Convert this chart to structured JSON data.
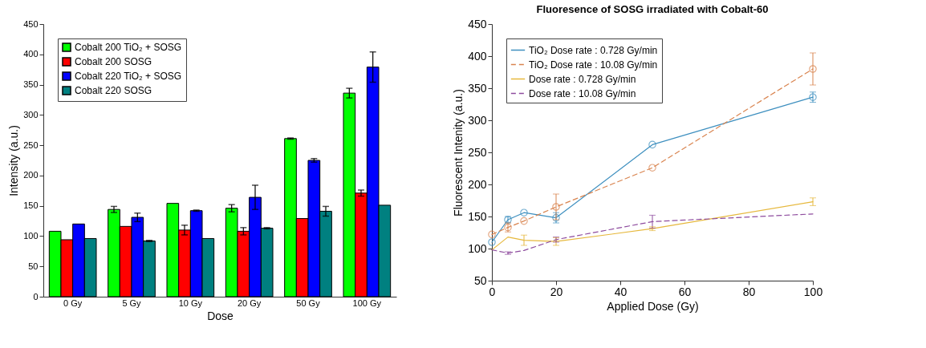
{
  "chart_data": [
    {
      "type": "bar",
      "xlabel": "Dose",
      "ylabel": "Intensity (a.u.)",
      "categories": [
        "0 Gy",
        "5 Gy",
        "10 Gy",
        "20 Gy",
        "50 Gy",
        "100 Gy"
      ],
      "ylim": [
        0,
        450
      ],
      "yticks": [
        0,
        50,
        100,
        150,
        200,
        250,
        300,
        350,
        400,
        450
      ],
      "grid": false,
      "legend": "top left",
      "series": [
        {
          "name": "Cobalt 200 TiO₂ + SOSG",
          "color": "#00ff00",
          "values": [
            108,
            144,
            154,
            146,
            261,
            336
          ],
          "errors": [
            null,
            5,
            null,
            6,
            1,
            8
          ]
        },
        {
          "name": "Cobalt 200 SOSG",
          "color": "#ff0000",
          "values": [
            94,
            116,
            110,
            108,
            129,
            171
          ],
          "errors": [
            null,
            null,
            8,
            6,
            null,
            5
          ]
        },
        {
          "name": "Cobalt 220 TiO₂ + SOSG",
          "color": "#0000ff",
          "values": [
            120,
            131,
            142,
            164,
            225,
            379
          ],
          "errors": [
            null,
            7,
            1,
            20,
            3,
            25
          ]
        },
        {
          "name": "Cobalt 220 SOSG",
          "color": "#008080",
          "values": [
            96,
            92,
            96,
            113,
            141,
            151
          ],
          "errors": [
            null,
            1,
            null,
            1,
            8,
            null
          ]
        }
      ]
    },
    {
      "type": "line",
      "title": "Fluoresence of SOSG irradiated with Cobalt-60",
      "xlabel": "Applied Dose (Gy)",
      "ylabel": "Fluorescent Intenity (a.u.)",
      "x": [
        0,
        5,
        10,
        20,
        50,
        100
      ],
      "xlim": [
        0,
        100
      ],
      "xticks": [
        0,
        20,
        40,
        60,
        80,
        100
      ],
      "ylim": [
        50,
        450
      ],
      "yticks": [
        50,
        100,
        150,
        200,
        250,
        300,
        350,
        400,
        450
      ],
      "grid": false,
      "legend": "top left",
      "series": [
        {
          "name": "TiO₂ Dose rate : 0.728 Gy/min",
          "color": "#3d8fbf",
          "marker": "circle",
          "line_style": "solid",
          "values": [
            110,
            145,
            156,
            148,
            262,
            336
          ],
          "errors": [
            null,
            5,
            null,
            8,
            null,
            8
          ]
        },
        {
          "name": "TiO₂ Dose rate : 10.08 Gy/min",
          "color": "#d9844f",
          "marker": "circle",
          "line_style": "dashed",
          "values": [
            122,
            133,
            143,
            165,
            226,
            380
          ],
          "errors": [
            null,
            7,
            null,
            20,
            null,
            25
          ]
        },
        {
          "name": "Dose rate : 0.728 Gy/min",
          "color": "#e6b83c",
          "marker": "none",
          "line_style": "solid",
          "values": [
            98,
            118,
            113,
            111,
            131,
            173
          ],
          "errors": [
            null,
            null,
            8,
            6,
            3,
            6
          ]
        },
        {
          "name": "Dose rate : 10.08 Gy/min",
          "color": "#8e4c9e",
          "marker": "none",
          "line_style": "dashed",
          "values": [
            98,
            93,
            97,
            114,
            142,
            154
          ],
          "errors": [
            null,
            2,
            null,
            4,
            10,
            null
          ]
        }
      ]
    }
  ]
}
